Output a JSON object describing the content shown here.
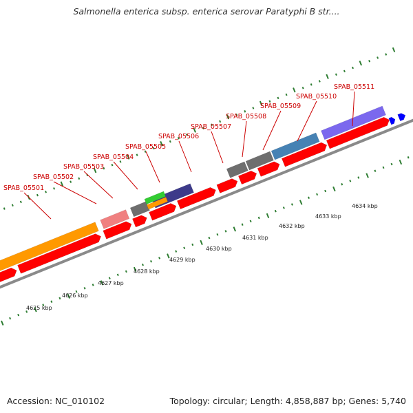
{
  "title": "Salmonella enterica subsp. enterica serovar Paratyphi B str....",
  "footer": {
    "accession": "Accession: NC_010102",
    "summary": "Topology: circular; Length: 4,858,887 bp; Genes: 5,740"
  },
  "gene_labels": [
    "SPAB_05501",
    "SPAB_05502",
    "SPAB_05503",
    "SPAB_05504",
    "SPAB_05505",
    "SPAB_05506",
    "SPAB_05507",
    "SPAB_05508",
    "SPAB_05509",
    "SPAB_05510",
    "SPAB_05511"
  ],
  "kbp_labels": [
    "4625 kbp",
    "4626 kbp",
    "4627 kbp",
    "4628 kbp",
    "4629 kbp",
    "4630 kbp",
    "4631 kbp",
    "4632 kbp",
    "4633 kbp",
    "4634 kbp"
  ],
  "colors": {
    "backbone": "#8a8a8a",
    "cds": "#ff0000",
    "label": "#cc0000",
    "tick": "#2e7d32",
    "gene_orange": "#ff9900",
    "gene_pink": "#f08080",
    "gene_gray": "#6e6e6e",
    "gene_green": "#33cc33",
    "gene_navy": "#3d3a8a",
    "gene_steelblue": "#4682b4",
    "gene_purple": "#7b68ee",
    "rna_blue": "#0000ff"
  }
}
